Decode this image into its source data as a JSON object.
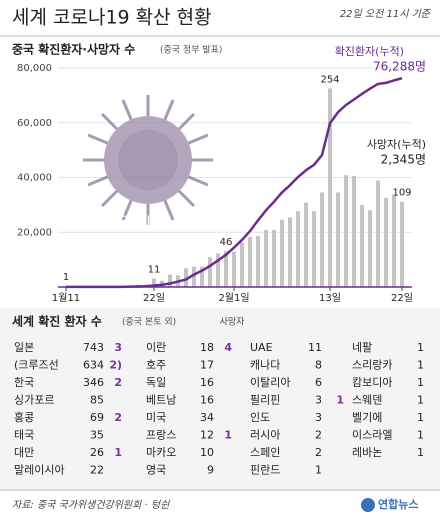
{
  "header": {
    "title": "세계 코로나19 확산 현황",
    "date": "22일 오전 11시 기준"
  },
  "chart_data": {
    "type": "bar-line",
    "title": "중국 확진환자·사망자 수",
    "subtitle": "(중국 정부 발표)",
    "categories": [
      "1월11",
      null,
      null,
      null,
      null,
      null,
      null,
      null,
      null,
      null,
      null,
      "22일",
      null,
      null,
      null,
      null,
      null,
      null,
      null,
      null,
      null,
      "2월1일",
      null,
      null,
      null,
      null,
      null,
      null,
      null,
      null,
      null,
      null,
      null,
      "13일",
      null,
      null,
      null,
      null,
      null,
      null,
      null,
      null,
      "22일"
    ],
    "series": [
      {
        "name": "확진환자(누적)",
        "color": "#6a2d8f",
        "values": [
          41,
          41,
          41,
          41,
          41,
          41,
          45,
          62,
          121,
          198,
          291,
          571,
          830,
          1287,
          1975,
          2744,
          4515,
          5974,
          7711,
          9692,
          11791,
          14380,
          17205,
          20438,
          24324,
          28018,
          31161,
          34546,
          37198,
          40171,
          42638,
          44653,
          48206,
          59804,
          63851,
          66492,
          68500,
          70548,
          72436,
          74185,
          74576,
          75465,
          76288
        ],
        "value_labels": [
          null,
          null,
          null,
          null,
          null,
          null,
          null,
          null,
          null,
          null,
          null,
          null,
          null,
          null,
          null,
          null,
          null,
          null,
          null,
          null,
          null,
          null,
          null,
          null,
          null,
          null,
          null,
          null,
          null,
          null,
          null,
          null,
          null,
          null,
          null,
          null,
          null,
          null,
          null,
          null,
          null,
          null,
          "76,288명"
        ]
      },
      {
        "axis": "y2",
        "color": "#c4c4c4",
        "values": [
          1,
          0,
          0,
          0,
          1,
          0,
          1,
          0,
          0,
          3,
          3,
          11,
          8,
          16,
          15,
          24,
          26,
          26,
          38,
          43,
          46,
          45,
          57,
          64,
          65,
          73,
          73,
          86,
          89,
          97,
          108,
          97,
          121,
          254,
          121,
          143,
          142,
          105,
          98,
          136,
          114,
          118,
          109
        ],
        "value_labels": [
          "1",
          null,
          null,
          null,
          null,
          null,
          null,
          null,
          null,
          null,
          null,
          "11",
          null,
          null,
          null,
          null,
          null,
          null,
          null,
          null,
          "46",
          null,
          null,
          null,
          null,
          null,
          null,
          null,
          null,
          null,
          null,
          null,
          null,
          "254",
          null,
          null,
          null,
          null,
          null,
          null,
          null,
          null,
          "109"
        ]
      }
    ],
    "ylim": [
      0,
      80000
    ],
    "yticks": [
      {
        "value": 20000,
        "label": "20,000"
      },
      {
        "value": 40000,
        "label": "40,000"
      },
      {
        "value": 60000,
        "label": "60,000"
      },
      {
        "value": 80000,
        "label": "80,000"
      }
    ],
    "y2lim": [
      0,
      280
    ],
    "grid": true,
    "annotations": [
      "사망자(누적)",
      "2,345명",
      "COVID-19"
    ]
  },
  "table": {
    "title": "세계 확진 환자 수",
    "subtitle": "(중국 본토 외)",
    "death_header": "사망자",
    "columns": [
      [
        [
          "일본",
          "743",
          "3"
        ],
        [
          "(크루즈선",
          "634",
          "2)"
        ],
        [
          "한국",
          "346",
          "2"
        ],
        [
          "싱가포르",
          "85",
          null
        ],
        [
          "홍콩",
          "69",
          "2"
        ],
        [
          "태국",
          "35",
          null
        ],
        [
          "대만",
          "26",
          "1"
        ],
        [
          "말레이시아",
          "22",
          null
        ]
      ],
      [
        [
          "이란",
          "18",
          "4"
        ],
        [
          "호주",
          "17",
          null
        ],
        [
          "독일",
          "16",
          null
        ],
        [
          "베트남",
          "16",
          null
        ],
        [
          "미국",
          "34",
          null
        ],
        [
          "프랑스",
          "12",
          "1"
        ],
        [
          "마카오",
          "10",
          null
        ],
        [
          "영국",
          "9",
          null
        ]
      ],
      [
        [
          "UAE",
          "11",
          null
        ],
        [
          "캐나다",
          "8",
          null
        ],
        [
          "이탈리아",
          "6",
          null
        ],
        [
          "필리핀",
          "3",
          "1"
        ],
        [
          "인도",
          "3",
          null
        ],
        [
          "러시아",
          "2",
          null
        ],
        [
          "스페인",
          "2",
          null
        ],
        [
          "핀란드",
          "1",
          null
        ]
      ],
      [
        [
          "네팔",
          "1",
          null
        ],
        [
          "스리랑카",
          "1",
          null
        ],
        [
          "캄보디아",
          "1",
          null
        ],
        [
          "스웨덴",
          "1",
          null
        ],
        [
          "벨기에",
          "1",
          null
        ],
        [
          "이스라엘",
          "1",
          null
        ],
        [
          "레바논",
          "1",
          null
        ]
      ]
    ]
  },
  "footer": {
    "source": "자료: 중국 국가위생건강위원회 · 텅쉰",
    "logo": "연합뉴스"
  }
}
